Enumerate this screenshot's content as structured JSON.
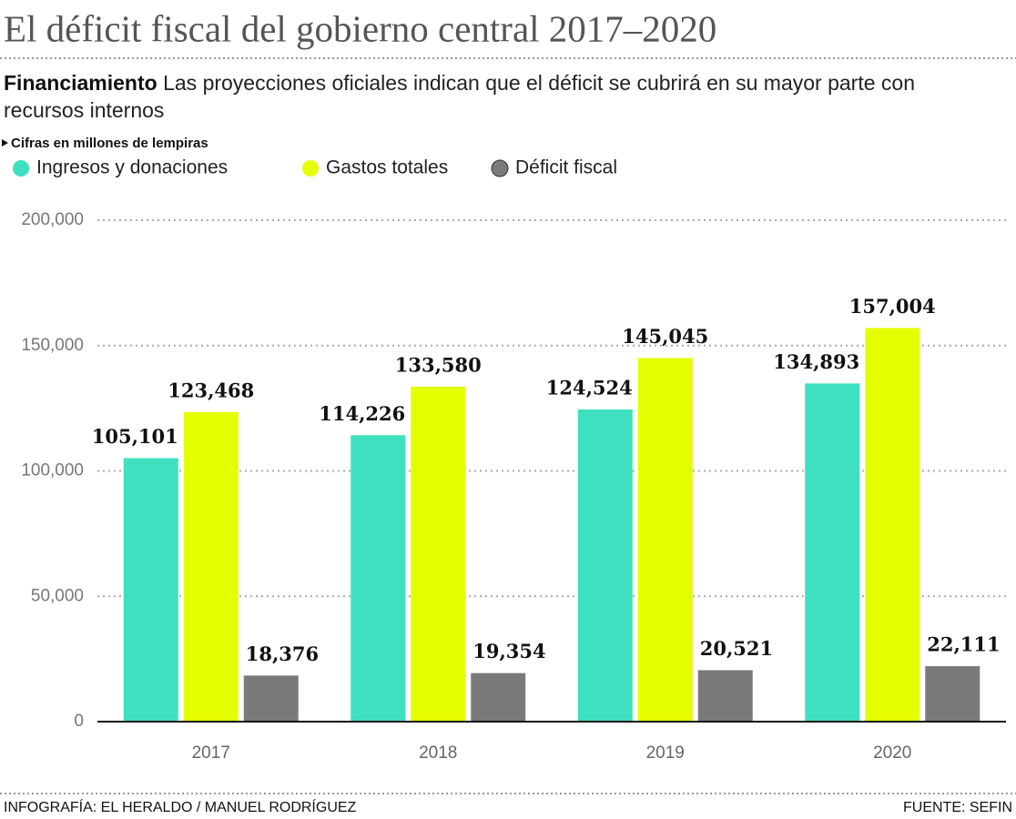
{
  "chart_data": {
    "type": "bar",
    "title": "El déficit fiscal del gobierno central 2017–2020",
    "subtitle_lead": "Financiamiento",
    "subtitle": "Las proyecciones oficiales indican que el déficit se cubrirá en su mayor parte con recursos internos",
    "unit_note": "Cifras en millones de lempiras",
    "categories": [
      "2017",
      "2018",
      "2019",
      "2020"
    ],
    "series": [
      {
        "name": "Ingresos y donaciones",
        "color": "#3ee0bf",
        "values": [
          105101,
          114226,
          124524,
          134893
        ],
        "value_labels": [
          "105,101",
          "114,226",
          "124,524",
          "134,893"
        ]
      },
      {
        "name": "Gastos totales",
        "color": "#e4ff00",
        "values": [
          123468,
          133580,
          145045,
          157004
        ],
        "value_labels": [
          "123,468",
          "133,580",
          "145,045",
          "157,004"
        ]
      },
      {
        "name": "Déficit fiscal",
        "color": "#7a7a7a",
        "values": [
          18376,
          19354,
          20521,
          22111
        ],
        "value_labels": [
          "18,376",
          "19,354",
          "20,521",
          "22,111"
        ]
      }
    ],
    "ylim": [
      0,
      200000
    ],
    "yticks": [
      0,
      {
        "value": 50000,
        "label": "50,000"
      },
      {
        "value": 100000,
        "label": "100,000"
      },
      {
        "value": 150000,
        "label": "150,000"
      },
      {
        "value": 200000,
        "label": "200,000"
      }
    ],
    "grid": true,
    "credit": "INFOGRAFÍA: EL HERALDO / MANUEL RODRÍGUEZ",
    "source": "FUENTE: SEFIN"
  }
}
